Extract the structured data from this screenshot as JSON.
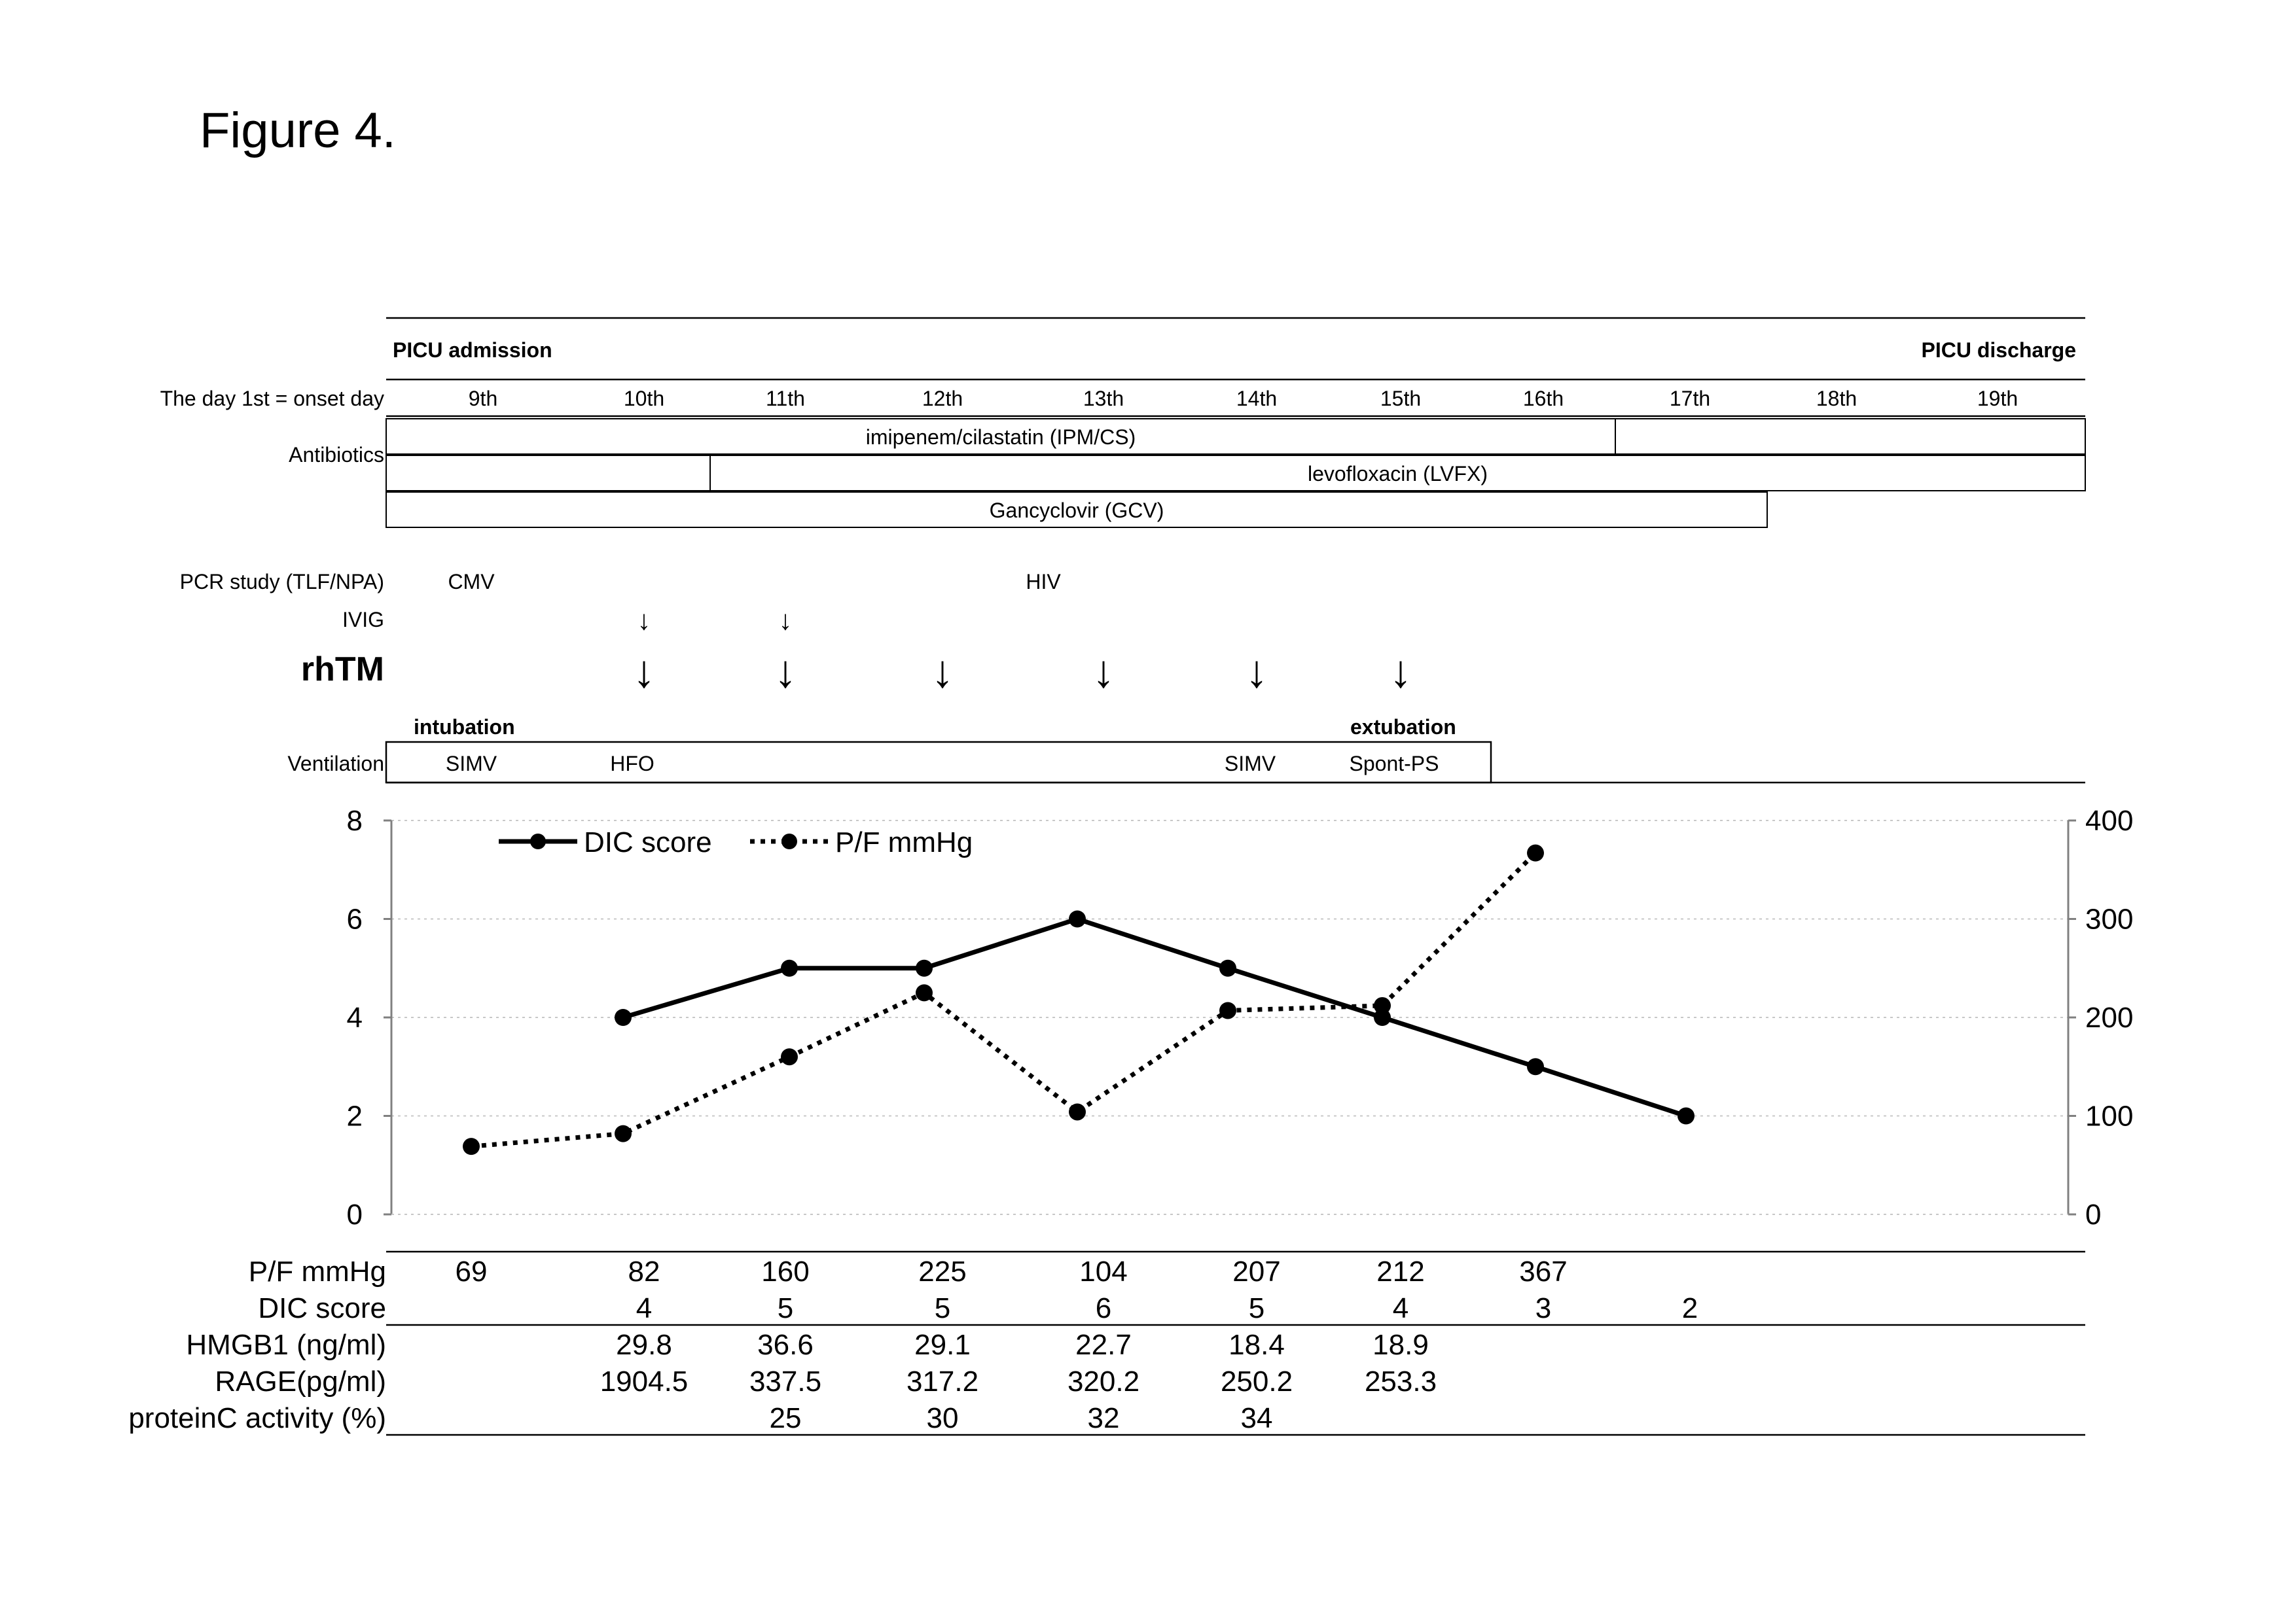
{
  "figure_title": "Figure 4.",
  "timeline": {
    "picu_admission": "PICU admission",
    "picu_discharge": "PICU discharge",
    "day_label": "The day 1st = onset day",
    "days": [
      "9th",
      "10th",
      "11th",
      "12th",
      "13th",
      "14th",
      "15th",
      "16th",
      "17th",
      "18th",
      "19th"
    ]
  },
  "antibiotics": {
    "label": "Antibiotics",
    "bars": [
      {
        "name": "imipenem/cilastatin (IPM/CS)",
        "start_day": "9th",
        "end_day": "16th"
      },
      {
        "name": "levofloxacin (LVFX)",
        "start_day": "11th",
        "end_day": "19th"
      },
      {
        "name": "Gancyclovir (GCV)",
        "start_day": "9th",
        "end_day": "17th"
      }
    ]
  },
  "pcr": {
    "label": "PCR study (TLF/NPA)",
    "entries": [
      {
        "day": "9th",
        "text": "CMV"
      },
      {
        "day": "13th",
        "text": "HIV"
      }
    ]
  },
  "ivig": {
    "label": "IVIG",
    "arrow": "↓",
    "days": [
      "10th",
      "11th"
    ]
  },
  "rhtm": {
    "label": "rhTM",
    "arrow": "↓",
    "days": [
      "10th",
      "11th",
      "12th",
      "13th",
      "14th",
      "15th"
    ]
  },
  "ventilation": {
    "label": "Ventilation",
    "intubation": "intubation",
    "extubation": "extubation",
    "modes": [
      {
        "day": "9th",
        "text": "SIMV"
      },
      {
        "day": "10th",
        "text": "HFO"
      },
      {
        "day": "14th",
        "text": "SIMV"
      },
      {
        "day": "15th",
        "text": "Spont-PS"
      }
    ]
  },
  "chart_data": {
    "type": "line",
    "x": [
      "9th",
      "10th",
      "11th",
      "12th",
      "13th",
      "14th",
      "15th",
      "16th",
      "17th"
    ],
    "series": [
      {
        "name": "DIC score",
        "axis": "left",
        "line_style": "solid",
        "color": "#000000",
        "values": [
          null,
          4,
          5,
          5,
          6,
          5,
          4,
          3,
          2
        ]
      },
      {
        "name": "P/F mmHg",
        "axis": "right",
        "line_style": "dotted",
        "color": "#000000",
        "values": [
          69,
          82,
          160,
          225,
          104,
          207,
          212,
          367,
          null
        ]
      }
    ],
    "y_left": {
      "ylim": [
        0,
        8
      ],
      "ticks": [
        0,
        2,
        4,
        6,
        8
      ]
    },
    "y_right": {
      "ylim": [
        0,
        400
      ],
      "ticks": [
        0,
        100,
        200,
        300,
        400
      ]
    },
    "grid": true,
    "legend_position": "top-left"
  },
  "table": {
    "rows": [
      {
        "label": "P/F mmHg",
        "values": [
          "69",
          "82",
          "160",
          "225",
          "104",
          "207",
          "212",
          "367",
          ""
        ]
      },
      {
        "label": "DIC score",
        "values": [
          "",
          "4",
          "5",
          "5",
          "6",
          "5",
          "4",
          "3",
          "2"
        ]
      },
      {
        "label": "HMGB1 (ng/ml)",
        "values": [
          "",
          "29.8",
          "36.6",
          "29.1",
          "22.7",
          "18.4",
          "18.9",
          "",
          ""
        ]
      },
      {
        "label": "RAGE(pg/ml)",
        "values": [
          "",
          "1904.5",
          "337.5",
          "317.2",
          "320.2",
          "250.2",
          "253.3",
          "",
          ""
        ]
      },
      {
        "label": "proteinC activity (%)",
        "values": [
          "",
          "",
          "25",
          "30",
          "32",
          "34",
          "",
          "",
          ""
        ]
      }
    ]
  }
}
